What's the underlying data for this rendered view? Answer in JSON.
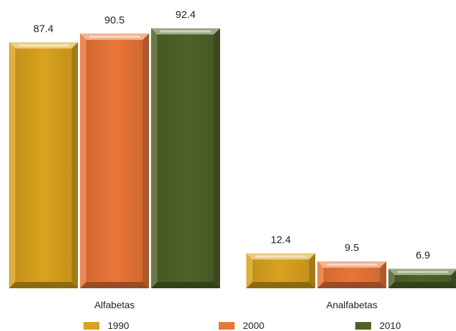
{
  "chart_data": {
    "type": "bar",
    "categories": [
      "Alfabetas",
      "Analfabetas"
    ],
    "series": [
      {
        "name": "1990",
        "values": [
          87.4,
          12.4
        ],
        "color": "#D9A21E"
      },
      {
        "name": "2000",
        "values": [
          90.5,
          9.5
        ],
        "color": "#E97537"
      },
      {
        "name": "2010",
        "values": [
          92.4,
          6.9
        ],
        "color": "#4E6228"
      }
    ],
    "ylim": [
      0,
      100
    ],
    "grid": false,
    "data_labels": true,
    "legend": "bottom"
  }
}
